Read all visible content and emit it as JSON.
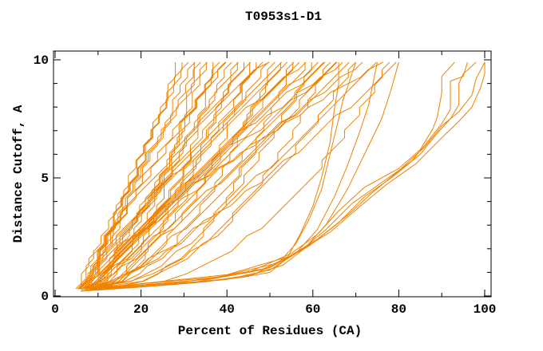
{
  "chart_data": {
    "type": "line",
    "title": "T0953s1-D1",
    "xlabel": "Percent of Residues (CA)",
    "ylabel": "Distance Cutoff, A",
    "xlim": [
      0,
      100
    ],
    "ylim": [
      0,
      10
    ],
    "x_major_ticks": [
      0,
      20,
      40,
      60,
      80,
      100
    ],
    "x_minor_ticks": [
      10,
      30,
      50,
      70,
      90
    ],
    "y_major_ticks": [
      0,
      5,
      10
    ],
    "y_minor_ticks": [
      1,
      2,
      3,
      4,
      6,
      7,
      8,
      9
    ],
    "grid": false,
    "legend": "none",
    "line_color": "#F08200",
    "axis_color": "#000000",
    "staircase": {
      "y_start": 0.3,
      "y_end": 9.9,
      "y_step": 0.32,
      "x_quantum": 1.75
    },
    "fan_curves": [
      [
        5.5,
        28.6,
        0.8
      ],
      [
        7.5,
        30,
        1.05
      ],
      [
        9,
        31,
        1.3
      ],
      [
        6.5,
        32,
        0.9
      ],
      [
        10,
        33,
        0.5
      ],
      [
        8,
        34,
        1.15
      ],
      [
        11,
        35,
        0.75
      ],
      [
        6,
        36,
        1.25
      ],
      [
        9.5,
        37,
        0.45
      ],
      [
        7,
        38,
        0.8
      ],
      [
        5.5,
        39,
        1.05
      ],
      [
        7.5,
        40,
        1.3
      ],
      [
        9,
        41,
        0.9
      ],
      [
        6.5,
        42,
        0.5
      ],
      [
        10,
        43,
        1.15
      ],
      [
        8,
        44,
        0.75
      ],
      [
        11,
        45,
        1.25
      ],
      [
        6,
        46,
        0.45
      ],
      [
        9.5,
        47,
        0.8
      ],
      [
        7,
        48,
        1.05
      ],
      [
        5.5,
        49,
        1.3
      ],
      [
        7.5,
        50,
        0.9
      ],
      [
        9,
        51,
        0.5
      ],
      [
        6.5,
        52,
        1.15
      ],
      [
        10,
        53,
        0.75
      ],
      [
        8,
        54,
        1.25
      ],
      [
        11,
        55,
        0.45
      ],
      [
        6,
        56,
        0.8
      ],
      [
        9.5,
        57,
        1.05
      ],
      [
        7,
        58,
        1.3
      ],
      [
        5.5,
        59,
        0.9
      ],
      [
        7.5,
        60,
        0.5
      ],
      [
        9,
        61,
        1.15
      ],
      [
        6.5,
        62,
        0.75
      ],
      [
        10,
        63,
        1.25
      ],
      [
        8,
        64,
        0.45
      ],
      [
        11,
        65,
        0.8
      ],
      [
        6,
        66,
        1.05
      ],
      [
        9.5,
        67,
        1.3
      ],
      [
        7,
        68.5,
        0.9
      ],
      [
        5.5,
        70,
        0.5
      ],
      [
        7.5,
        72,
        1.15
      ],
      [
        9,
        74,
        0.75
      ],
      [
        6.5,
        76,
        1.25
      ],
      [
        10,
        78,
        0.45
      ],
      [
        8,
        80,
        0.8
      ]
    ],
    "outlier_curves": [
      [
        [
          6,
          0.25
        ],
        [
          20,
          0.4
        ],
        [
          35,
          0.6
        ],
        [
          46,
          0.9
        ],
        [
          52,
          1.4
        ],
        [
          56,
          2.2
        ],
        [
          59,
          3.2
        ],
        [
          62,
          4.5
        ],
        [
          64,
          6
        ],
        [
          66,
          7.5
        ],
        [
          67,
          8.3
        ],
        [
          68,
          8.8
        ],
        [
          70,
          9.9
        ]
      ],
      [
        [
          7,
          0.25
        ],
        [
          25,
          0.45
        ],
        [
          40,
          0.7
        ],
        [
          50,
          1.1
        ],
        [
          56,
          1.8
        ],
        [
          61,
          2.8
        ],
        [
          65,
          4.2
        ],
        [
          68,
          5.5
        ],
        [
          71,
          7
        ],
        [
          73,
          8.1
        ],
        [
          74,
          9
        ],
        [
          75,
          9.9
        ]
      ],
      [
        [
          8,
          0.25
        ],
        [
          28,
          0.5
        ],
        [
          44,
          0.8
        ],
        [
          53,
          1.3
        ],
        [
          58,
          2
        ],
        [
          63,
          3
        ],
        [
          68,
          4.5
        ],
        [
          72,
          6
        ],
        [
          76,
          7.5
        ],
        [
          78,
          8.6
        ],
        [
          80,
          9.9
        ]
      ],
      [
        [
          8,
          0.3
        ],
        [
          30,
          0.6
        ],
        [
          45,
          1
        ],
        [
          55,
          1.8
        ],
        [
          61,
          2.6
        ],
        [
          66,
          3.6
        ],
        [
          72,
          4.6
        ],
        [
          80,
          5.4
        ],
        [
          85,
          6.2
        ],
        [
          88,
          7.1
        ],
        [
          89,
          7.6
        ],
        [
          90,
          8.6
        ],
        [
          90,
          9.3
        ],
        [
          93,
          9.9
        ]
      ],
      [
        [
          9,
          0.3
        ],
        [
          33,
          0.6
        ],
        [
          48,
          1.1
        ],
        [
          57,
          1.9
        ],
        [
          63,
          2.8
        ],
        [
          69,
          3.9
        ],
        [
          76,
          4.8
        ],
        [
          83,
          5.7
        ],
        [
          87,
          6.6
        ],
        [
          90,
          7.3
        ],
        [
          92,
          7.9
        ],
        [
          92,
          9.1
        ],
        [
          95,
          9.3
        ],
        [
          96,
          9.9
        ]
      ],
      [
        [
          10,
          0.3
        ],
        [
          35,
          0.7
        ],
        [
          50,
          1.2
        ],
        [
          59,
          2.1
        ],
        [
          66,
          3.1
        ],
        [
          72,
          4.2
        ],
        [
          79,
          5.1
        ],
        [
          85,
          6
        ],
        [
          89,
          6.9
        ],
        [
          92,
          7.5
        ],
        [
          94,
          8.1
        ],
        [
          94,
          9
        ],
        [
          95,
          9.4
        ],
        [
          98,
          9.9
        ]
      ],
      [
        [
          10,
          0.35
        ],
        [
          38,
          0.8
        ],
        [
          52,
          1.4
        ],
        [
          61,
          2.4
        ],
        [
          68,
          3.4
        ],
        [
          74,
          4.4
        ],
        [
          80,
          5.3
        ],
        [
          86,
          6.3
        ],
        [
          90,
          7.2
        ],
        [
          94,
          7.8
        ],
        [
          97,
          8.5
        ],
        [
          98,
          9.2
        ],
        [
          100,
          9.9
        ]
      ],
      [
        [
          11,
          0.35
        ],
        [
          40,
          0.9
        ],
        [
          55,
          1.7
        ],
        [
          64,
          2.7
        ],
        [
          71,
          3.8
        ],
        [
          77,
          4.7
        ],
        [
          84,
          5.6
        ],
        [
          90,
          6.7
        ],
        [
          94,
          7.4
        ],
        [
          97,
          8
        ],
        [
          99,
          8.8
        ],
        [
          100,
          9.4
        ],
        [
          100,
          9.9
        ]
      ],
      [
        [
          6,
          0.2
        ],
        [
          18,
          0.35
        ],
        [
          32,
          0.55
        ],
        [
          44,
          0.8
        ],
        [
          50,
          1
        ],
        [
          54,
          1.6
        ],
        [
          57,
          2.6
        ],
        [
          60,
          3.8
        ],
        [
          62,
          5
        ],
        [
          64,
          6.5
        ],
        [
          65,
          7.9
        ],
        [
          66,
          9
        ],
        [
          66,
          9.9
        ]
      ]
    ]
  }
}
